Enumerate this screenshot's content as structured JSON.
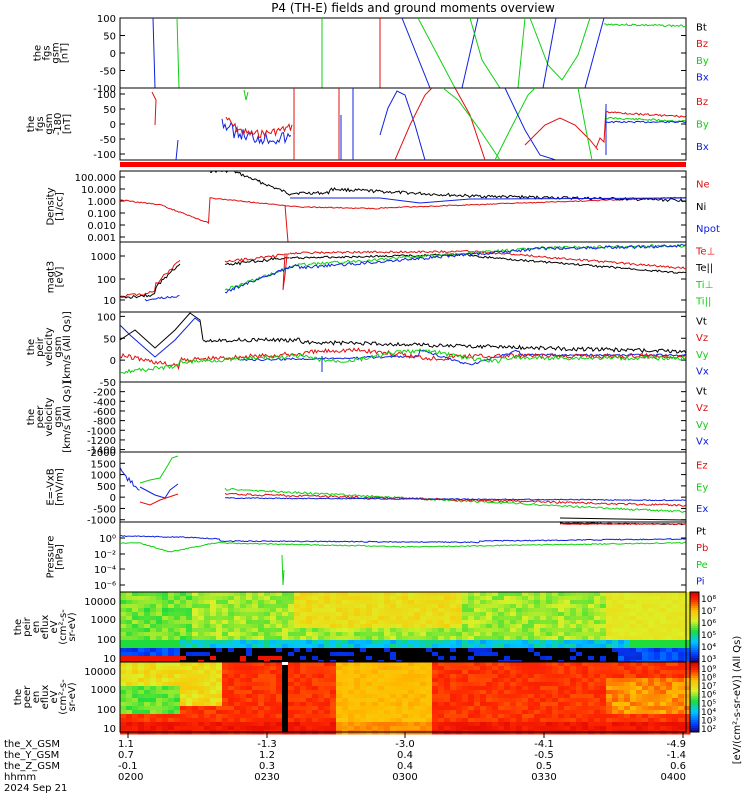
{
  "title": "P4 (TH-E) fields and ground moments overview",
  "colors": {
    "black": "#000000",
    "red": "#e01010",
    "green": "#10d010",
    "blue": "#1020e0",
    "bar_red": "#ff0000"
  },
  "chart_data": [
    {
      "type": "line",
      "id": "fgs",
      "ylabel": [
        "the",
        "fgs",
        "gsm",
        "[nT]"
      ],
      "ylim": [
        -100,
        100
      ],
      "yticks": [
        "100",
        "50",
        "0",
        "-50",
        "-100"
      ],
      "legend": [
        {
          "name": "Bt",
          "color": "black"
        },
        {
          "name": "Bz",
          "color": "red"
        },
        {
          "name": "By",
          "color": "green"
        },
        {
          "name": "Bx",
          "color": "blue"
        }
      ]
    },
    {
      "type": "line",
      "id": "fgs_zoom",
      "ylabel": [
        "the",
        "fgs",
        "gsm",
        "-180",
        "[nT]"
      ],
      "ylim": [
        -120,
        120
      ],
      "yticks": [
        "100",
        "50",
        "0",
        "-50",
        "-100"
      ],
      "legend": [
        {
          "name": "Bz",
          "color": "red"
        },
        {
          "name": "By",
          "color": "green"
        },
        {
          "name": "Bx",
          "color": "blue"
        }
      ]
    },
    {
      "type": "line",
      "id": "density",
      "scale": "log",
      "ylabel": [
        "Density",
        "[1/cc]"
      ],
      "yticks": [
        "100.000",
        "10.000",
        "1.000",
        "0.100",
        "0.010",
        "0.001"
      ],
      "legend": [
        {
          "name": "Ne",
          "color": "red"
        },
        {
          "name": "Ni",
          "color": "black"
        },
        {
          "name": "Npot",
          "color": "blue"
        }
      ]
    },
    {
      "type": "line",
      "id": "temperature",
      "scale": "log",
      "ylabel": [
        "magt3",
        "[eV]"
      ],
      "yticks": [
        "1000",
        "100",
        "10"
      ],
      "legend": [
        {
          "name": "Te⊥",
          "color": "red"
        },
        {
          "name": "Te||",
          "color": "black"
        },
        {
          "name": "Ti⊥",
          "color": "green"
        },
        {
          "name": "Ti||",
          "color": "green"
        }
      ]
    },
    {
      "type": "line",
      "id": "peir_velocity",
      "ylabel": [
        "the",
        "peir",
        "velocity",
        "gsm",
        "[km/s (All Qs)]"
      ],
      "ylim": [
        -50,
        110
      ],
      "yticks": [
        "100",
        "50",
        "0",
        "-50"
      ],
      "legend": [
        {
          "name": "Vt",
          "color": "black"
        },
        {
          "name": "Vz",
          "color": "red"
        },
        {
          "name": "Vy",
          "color": "green"
        },
        {
          "name": "Vx",
          "color": "blue"
        }
      ]
    },
    {
      "type": "line",
      "id": "peer_velocity",
      "ylabel": [
        "the",
        "peer",
        "velocity",
        "gsm",
        "[km/s (All Qs)]"
      ],
      "ylim": [
        -1450,
        0
      ],
      "yticks": [
        "-200",
        "-400",
        "-600",
        "-800",
        "-1000",
        "-1200",
        "-1400"
      ],
      "legend": [
        {
          "name": "Vt",
          "color": "black"
        },
        {
          "name": "Vz",
          "color": "red"
        },
        {
          "name": "Vy",
          "color": "green"
        },
        {
          "name": "Vx",
          "color": "blue"
        }
      ]
    },
    {
      "type": "line",
      "id": "efield",
      "ylabel": [
        "E=-VxB",
        "[mV/m]"
      ],
      "ylim": [
        -1100,
        2000
      ],
      "yticks": [
        "2000",
        "1500",
        "1000",
        "500",
        "0",
        "-500",
        "-1000"
      ],
      "legend": [
        {
          "name": "Ez",
          "color": "red"
        },
        {
          "name": "Ey",
          "color": "green"
        },
        {
          "name": "Ex",
          "color": "blue"
        }
      ]
    },
    {
      "type": "line",
      "id": "pressure",
      "scale": "log",
      "ylabel": [
        "Pressure",
        "[nPa]"
      ],
      "yticks": [
        "10⁰",
        "10⁻²",
        "10⁻⁴",
        "10⁻⁶"
      ],
      "legend": [
        {
          "name": "Pt",
          "color": "black"
        },
        {
          "name": "Pb",
          "color": "red"
        },
        {
          "name": "Pe",
          "color": "green"
        },
        {
          "name": "Pi",
          "color": "blue"
        }
      ]
    },
    {
      "type": "heatmap",
      "id": "peir_spec",
      "ylabel": [
        "the",
        "peir",
        "en",
        "eflux",
        "eV",
        "(cm²-s-",
        "sr-eV)"
      ],
      "yticks": [
        "10000",
        "1000",
        "100",
        "10"
      ],
      "colorbar_ticks": [
        "10⁸",
        "10⁷",
        "10⁶",
        "10⁵",
        "10⁴",
        "10³"
      ]
    },
    {
      "type": "heatmap",
      "id": "peer_spec",
      "ylabel": [
        "the",
        "peer",
        "en",
        "eflux",
        "eV",
        "(cm²-s-",
        "sr-eV)"
      ],
      "yticks": [
        "10000",
        "1000",
        "100",
        "10"
      ],
      "colorbar_ticks": [
        "10⁹",
        "10⁸",
        "10⁷",
        "10⁶",
        "10⁵",
        "10⁴",
        "10³",
        "10²"
      ]
    }
  ],
  "colorbar_label": "[eV/(cm²-s-sr-eV)] (All Qs)",
  "x_axis": {
    "rows": [
      {
        "label": "the_X_GSM",
        "values": [
          "1.1",
          "-1.3",
          "-3.0",
          "-4.1",
          "-4.9"
        ]
      },
      {
        "label": "the_Y_GSM",
        "values": [
          "0.7",
          "1.2",
          "0.4",
          "-0.5",
          "-1.4"
        ]
      },
      {
        "label": "the_Z_GSM",
        "values": [
          "-0.1",
          "0.3",
          "0.4",
          "0.5",
          "0.6"
        ]
      },
      {
        "label": "hhmm",
        "values": [
          "0200",
          "0230",
          "0300",
          "0330",
          "0400"
        ]
      }
    ],
    "date": "2024 Sep 21"
  }
}
